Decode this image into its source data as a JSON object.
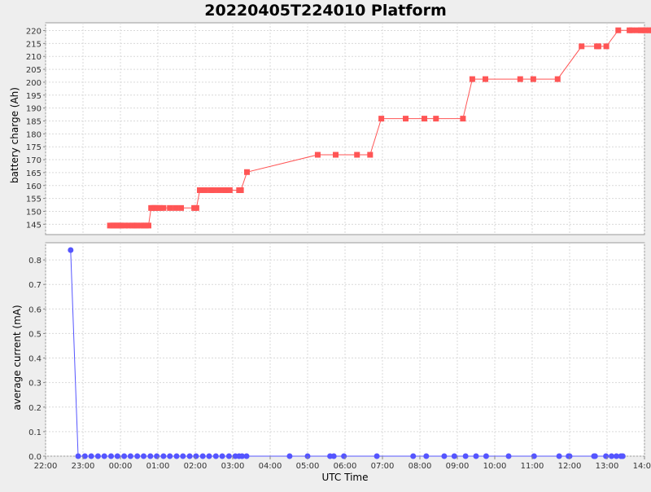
{
  "chart_data": {
    "type": "line",
    "title": "20220405T224010 Platform",
    "xlabel": "UTC Time",
    "x_ticks": [
      "22:00",
      "23:00",
      "00:00",
      "01:00",
      "02:00",
      "03:00",
      "04:00",
      "05:00",
      "06:00",
      "07:00",
      "08:00",
      "09:00",
      "10:00",
      "11:00",
      "12:00",
      "13:00",
      "14:00"
    ],
    "x_range_hours": [
      0,
      16
    ],
    "grid": true,
    "colors": {
      "battery": "#ff5555",
      "current": "#5555ff",
      "plot_background": "#ffffff",
      "grid": "#d9d9d9"
    },
    "panels": [
      {
        "ylabel": "battery charge (Ah)",
        "ylim": [
          141,
          223
        ],
        "yticks": [
          145,
          150,
          155,
          160,
          165,
          170,
          175,
          180,
          185,
          190,
          195,
          200,
          205,
          210,
          215,
          220
        ],
        "marker": "square",
        "series": [
          {
            "x": [
              1.72,
              1.78,
              1.82,
              1.87,
              1.92,
              1.97,
              2.02,
              2.12,
              2.22,
              2.32,
              2.39,
              2.45,
              2.55,
              2.62,
              2.68,
              2.75,
              2.82,
              2.87,
              2.92,
              2.98,
              3.05,
              3.15,
              3.32,
              3.47,
              3.62,
              3.97,
              4.03,
              4.12,
              4.27,
              4.42,
              4.47,
              4.62,
              4.77,
              4.82,
              4.92,
              5.17,
              5.22,
              5.38,
              7.27,
              7.75,
              8.32,
              8.67,
              8.97,
              9.62,
              10.12,
              10.43,
              11.15,
              11.4,
              11.75,
              12.68,
              13.03,
              13.68,
              14.32,
              14.73,
              14.77,
              14.98,
              15.3,
              15.6,
              15.66,
              15.8,
              15.9,
              15.95,
              16.03,
              16.13,
              16.2,
              16.3,
              16.4,
              16.45
            ],
            "y": [
              144.5,
              144.5,
              144.5,
              144.5,
              144.5,
              144.5,
              144.5,
              144.5,
              144.5,
              144.5,
              144.5,
              144.5,
              144.5,
              144.5,
              144.5,
              144.5,
              151.3,
              151.3,
              151.3,
              151.3,
              151.3,
              151.3,
              151.3,
              151.3,
              151.3,
              151.3,
              151.3,
              158.2,
              158.2,
              158.2,
              158.2,
              158.2,
              158.2,
              158.2,
              158.2,
              158.2,
              158.2,
              165.2,
              171.9,
              171.9,
              171.9,
              171.9,
              185.9,
              185.9,
              185.9,
              185.9,
              185.9,
              201.2,
              201.2,
              201.2,
              201.2,
              201.2,
              213.9,
              213.9,
              213.9,
              213.9,
              220.1,
              220.1,
              220.1,
              220.1,
              220.1,
              220.1,
              220.1,
              220.1,
              220.1,
              220.1,
              220.1,
              220.1
            ]
          }
        ]
      },
      {
        "ylabel": "average current (mA)",
        "ylim": [
          0,
          0.87
        ],
        "yticks": [
          "0.0",
          "0.1",
          "0.2",
          "0.3",
          "0.4",
          "0.5",
          "0.6",
          "0.7",
          "0.8"
        ],
        "marker": "circle",
        "series": [
          {
            "x": [
              0.67,
              0.87,
              1.05,
              1.22,
              1.4,
              1.57,
              1.75,
              1.92,
              2.1,
              2.27,
              2.45,
              2.62,
              2.8,
              2.97,
              3.15,
              3.32,
              3.5,
              3.67,
              3.85,
              4.02,
              4.2,
              4.37,
              4.55,
              4.72,
              4.9,
              5.07,
              5.17,
              5.25,
              5.37,
              6.52,
              7.0,
              7.6,
              7.7,
              7.97,
              8.85,
              9.82,
              10.17,
              10.65,
              10.92,
              11.22,
              11.5,
              11.77,
              12.37,
              13.05,
              13.72,
              13.97,
              14.0,
              14.65,
              14.68,
              14.97,
              15.12,
              15.25,
              15.37,
              15.42
            ],
            "y": [
              0.84,
              0,
              0,
              0,
              0,
              0,
              0,
              0,
              0,
              0,
              0,
              0,
              0,
              0,
              0,
              0,
              0,
              0,
              0,
              0,
              0,
              0,
              0,
              0,
              0,
              0,
              0,
              0,
              0,
              0,
              0,
              0,
              0,
              0,
              0,
              0,
              0,
              0,
              0,
              0,
              0,
              0,
              0,
              0,
              0,
              0,
              0,
              0,
              0,
              0,
              0,
              0,
              0,
              0
            ]
          }
        ]
      }
    ]
  }
}
